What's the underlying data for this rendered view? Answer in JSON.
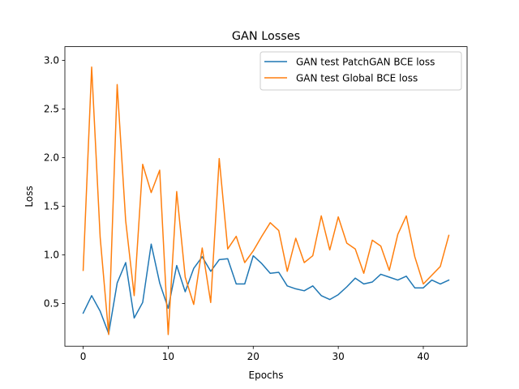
{
  "chart_data": {
    "type": "line",
    "title": "GAN Losses",
    "xlabel": "Epochs",
    "ylabel": "Loss",
    "xlim": [
      -2.15,
      45.15
    ],
    "ylim": [
      0.06,
      3.14
    ],
    "xticks": [
      0,
      10,
      20,
      30,
      40
    ],
    "yticks": [
      0.5,
      1.0,
      1.5,
      2.0,
      2.5,
      3.0
    ],
    "ytick_labels": [
      "0.5",
      "1.0",
      "1.5",
      "2.0",
      "2.5",
      "3.0"
    ],
    "grid": false,
    "legend_position": "top-right",
    "x": [
      0,
      1,
      2,
      3,
      4,
      5,
      6,
      7,
      8,
      9,
      10,
      11,
      12,
      13,
      14,
      15,
      16,
      17,
      18,
      19,
      20,
      21,
      22,
      23,
      24,
      25,
      26,
      27,
      28,
      29,
      30,
      31,
      32,
      33,
      34,
      35,
      36,
      37,
      38,
      39,
      40,
      41,
      42,
      43
    ],
    "series": [
      {
        "name": "GAN test PatchGAN BCE loss",
        "color": "#1f77b4",
        "values": [
          0.4,
          0.58,
          0.42,
          0.19,
          0.71,
          0.92,
          0.35,
          0.51,
          1.11,
          0.71,
          0.45,
          0.89,
          0.62,
          0.86,
          0.98,
          0.83,
          0.95,
          0.96,
          0.7,
          0.7,
          0.99,
          0.91,
          0.81,
          0.82,
          0.68,
          0.65,
          0.63,
          0.68,
          0.58,
          0.54,
          0.59,
          0.67,
          0.76,
          0.7,
          0.72,
          0.8,
          0.77,
          0.74,
          0.78,
          0.66,
          0.66,
          0.74,
          0.7,
          0.74
        ]
      },
      {
        "name": "GAN test Global BCE loss",
        "color": "#ff7f0e",
        "values": [
          0.84,
          2.93,
          1.18,
          0.18,
          2.75,
          1.35,
          0.58,
          1.93,
          1.64,
          1.87,
          0.18,
          1.65,
          0.77,
          0.49,
          1.07,
          0.51,
          1.99,
          1.06,
          1.19,
          0.92,
          1.04,
          1.19,
          1.33,
          1.25,
          0.83,
          1.17,
          0.92,
          0.99,
          1.4,
          1.05,
          1.39,
          1.12,
          1.06,
          0.81,
          1.15,
          1.09,
          0.84,
          1.21,
          1.4,
          0.98,
          0.7,
          0.79,
          0.88,
          1.2
        ]
      }
    ]
  }
}
